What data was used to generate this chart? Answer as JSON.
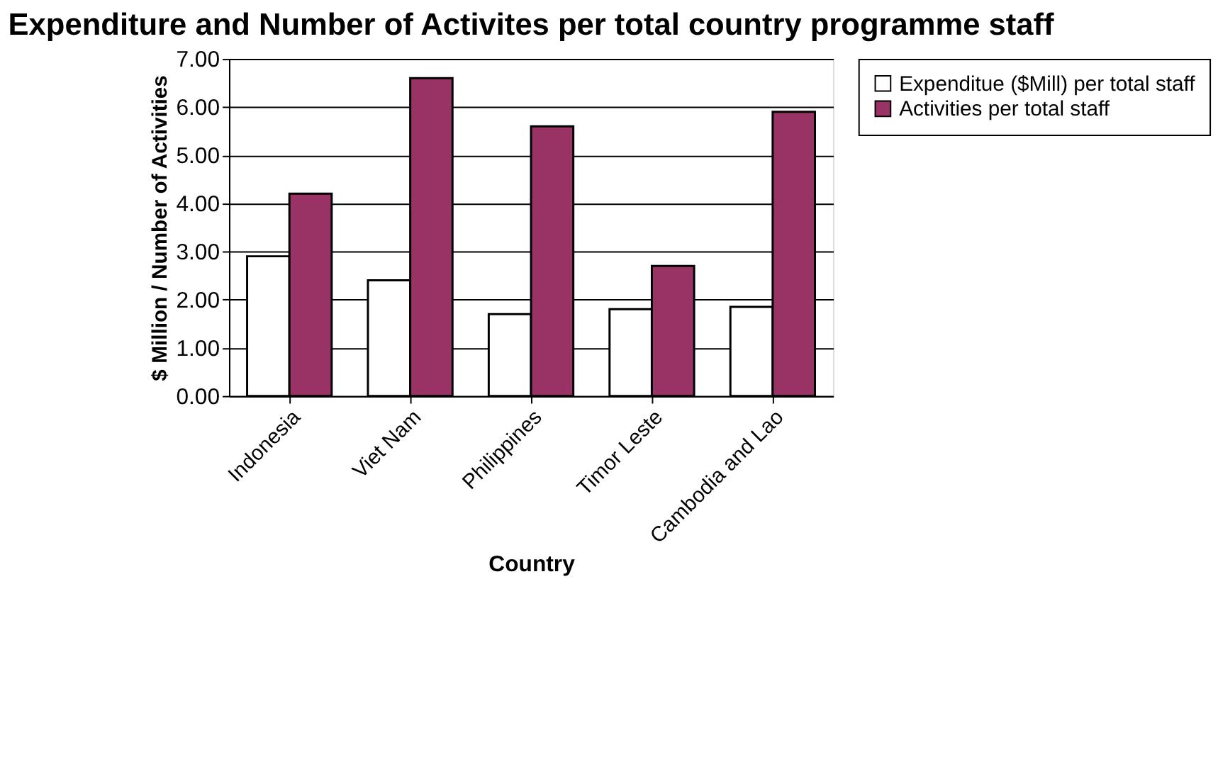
{
  "chart_data": {
    "type": "bar",
    "title": "Expenditure and Number of Activites per total country programme staff",
    "xlabel": "Country",
    "ylabel": "$ Million / Number of Activities",
    "categories": [
      "Indonesia",
      "Viet Nam",
      "Philippines",
      "Timor Leste",
      "Cambodia and Lao"
    ],
    "series": [
      {
        "name": "Expenditue ($Mill) per total staff",
        "color": "#ffffff",
        "values": [
          2.9,
          2.4,
          1.7,
          1.8,
          1.85
        ]
      },
      {
        "name": "Activities per total staff",
        "color": "#993366",
        "values": [
          4.2,
          6.6,
          5.6,
          2.7,
          5.9
        ]
      }
    ],
    "ylim": [
      0,
      7
    ],
    "yticks": [
      {
        "value": 0,
        "label": "0.00"
      },
      {
        "value": 1,
        "label": "1.00"
      },
      {
        "value": 2,
        "label": "2.00"
      },
      {
        "value": 3,
        "label": "3.00"
      },
      {
        "value": 4,
        "label": "4.00"
      },
      {
        "value": 5,
        "label": "5.00"
      },
      {
        "value": 6,
        "label": "6.00"
      },
      {
        "value": 7,
        "label": "7.00"
      }
    ],
    "grid": "y",
    "legend": "right"
  }
}
